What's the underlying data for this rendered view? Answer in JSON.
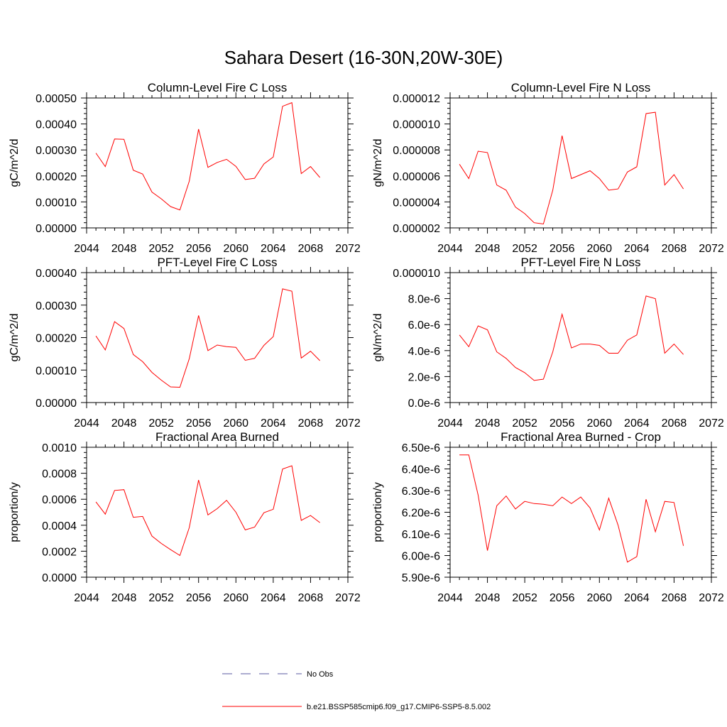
{
  "title": "Sahara Desert (16-30N,20W-30E)",
  "legend": {
    "entries": [
      {
        "label": "No Obs",
        "color": "#5a5aa0",
        "style": "dashed"
      },
      {
        "label": "b.e21.BSSP585cmip6.f09_g17.CMIP6-SSP5-8.5.002",
        "color": "#ff0000",
        "style": "solid"
      }
    ]
  },
  "chart_data": [
    {
      "type": "line",
      "title": "Column-Level Fire C Loss",
      "ylabel": "gC/m^2/d",
      "xlim": [
        2044,
        2072
      ],
      "ylim": [
        0,
        0.0005
      ],
      "xticks": [
        "2044",
        "2048",
        "2052",
        "2056",
        "2060",
        "2064",
        "2068",
        "2072"
      ],
      "yticks": [
        "0.00000",
        "0.00010",
        "0.00020",
        "0.00030",
        "0.00040",
        "0.00050"
      ],
      "x": [
        2045,
        2046,
        2047,
        2048,
        2049,
        2050,
        2051,
        2052,
        2053,
        2054,
        2055,
        2056,
        2057,
        2058,
        2059,
        2060,
        2061,
        2062,
        2063,
        2064,
        2065,
        2066,
        2067,
        2068,
        2069
      ],
      "series": [
        {
          "values": [
            0.000288,
            0.000236,
            0.000342,
            0.000341,
            0.000222,
            0.000207,
            0.000138,
            0.000112,
            8.2e-05,
            6.9e-05,
            0.00018,
            0.00038,
            0.000233,
            0.000252,
            0.000264,
            0.000237,
            0.000186,
            0.000191,
            0.000246,
            0.000273,
            0.000468,
            0.000482,
            0.000209,
            0.000236,
            0.000194
          ]
        }
      ]
    },
    {
      "type": "line",
      "title": "Column-Level Fire N Loss",
      "ylabel": "gN/m^2/d",
      "xlim": [
        2044,
        2072
      ],
      "ylim": [
        2e-06,
        1.2e-05
      ],
      "xticks": [
        "2044",
        "2048",
        "2052",
        "2056",
        "2060",
        "2064",
        "2068",
        "2072"
      ],
      "yticks": [
        "0.000002",
        "0.000004",
        "0.000006",
        "0.000008",
        "0.000010",
        "0.000012"
      ],
      "x": [
        2045,
        2046,
        2047,
        2048,
        2049,
        2050,
        2051,
        2052,
        2053,
        2054,
        2055,
        2056,
        2057,
        2058,
        2059,
        2060,
        2061,
        2062,
        2063,
        2064,
        2065,
        2066,
        2067,
        2068,
        2069
      ],
      "series": [
        {
          "values": [
            6.9e-06,
            5.8e-06,
            7.9e-06,
            7.8e-06,
            5.3e-06,
            4.9e-06,
            3.6e-06,
            3.1e-06,
            2.4e-06,
            2.3e-06,
            4.9e-06,
            9.1e-06,
            5.8e-06,
            6.1e-06,
            6.4e-06,
            5.8e-06,
            4.9e-06,
            5e-06,
            6.3e-06,
            6.7e-06,
            1.08e-05,
            1.09e-05,
            5.3e-06,
            6.1e-06,
            5e-06
          ]
        }
      ]
    },
    {
      "type": "line",
      "title": "PFT-Level Fire C Loss",
      "ylabel": "gC/m^2/d",
      "xlim": [
        2044,
        2072
      ],
      "ylim": [
        0,
        0.0004
      ],
      "xticks": [
        "2044",
        "2048",
        "2052",
        "2056",
        "2060",
        "2064",
        "2068",
        "2072"
      ],
      "yticks": [
        "0.00000",
        "0.00010",
        "0.00020",
        "0.00030",
        "0.00040"
      ],
      "x": [
        2045,
        2046,
        2047,
        2048,
        2049,
        2050,
        2051,
        2052,
        2053,
        2054,
        2055,
        2056,
        2057,
        2058,
        2059,
        2060,
        2061,
        2062,
        2063,
        2064,
        2065,
        2066,
        2067,
        2068,
        2069
      ],
      "series": [
        {
          "values": [
            0.000205,
            0.000162,
            0.000249,
            0.000228,
            0.000148,
            0.000126,
            9.3e-05,
            6.9e-05,
            4.8e-05,
            4.7e-05,
            0.000135,
            0.000268,
            0.00016,
            0.000177,
            0.000172,
            0.00017,
            0.00013,
            0.000136,
            0.000176,
            0.000203,
            0.00035,
            0.000343,
            0.000137,
            0.000158,
            0.000129
          ]
        }
      ]
    },
    {
      "type": "line",
      "title": "PFT-Level Fire N Loss",
      "ylabel": "gN/m^2/d",
      "xlim": [
        2044,
        2072
      ],
      "ylim": [
        0,
        1e-05
      ],
      "xticks": [
        "2044",
        "2048",
        "2052",
        "2056",
        "2060",
        "2064",
        "2068",
        "2072"
      ],
      "yticks": [
        "0.0e-6",
        "2.0e-6",
        "4.0e-6",
        "6.0e-6",
        "8.0e-6",
        "0.000010"
      ],
      "x": [
        2045,
        2046,
        2047,
        2048,
        2049,
        2050,
        2051,
        2052,
        2053,
        2054,
        2055,
        2056,
        2057,
        2058,
        2059,
        2060,
        2061,
        2062,
        2063,
        2064,
        2065,
        2066,
        2067,
        2068,
        2069
      ],
      "series": [
        {
          "values": [
            5.2e-06,
            4.3e-06,
            5.9e-06,
            5.6e-06,
            3.9e-06,
            3.4e-06,
            2.7e-06,
            2.3e-06,
            1.7e-06,
            1.8e-06,
            3.9e-06,
            6.8e-06,
            4.2e-06,
            4.5e-06,
            4.5e-06,
            4.4e-06,
            3.8e-06,
            3.8e-06,
            4.8e-06,
            5.2e-06,
            8.2e-06,
            8e-06,
            3.8e-06,
            4.5e-06,
            3.7e-06
          ]
        }
      ]
    },
    {
      "type": "line",
      "title": "Fractional Area Burned",
      "ylabel": "proportion/y",
      "xlim": [
        2044,
        2072
      ],
      "ylim": [
        0,
        0.001
      ],
      "xticks": [
        "2044",
        "2048",
        "2052",
        "2056",
        "2060",
        "2064",
        "2068",
        "2072"
      ],
      "yticks": [
        "0.0000",
        "0.0002",
        "0.0004",
        "0.0006",
        "0.0008",
        "0.0010"
      ],
      "x": [
        2045,
        2046,
        2047,
        2048,
        2049,
        2050,
        2051,
        2052,
        2053,
        2054,
        2055,
        2056,
        2057,
        2058,
        2059,
        2060,
        2061,
        2062,
        2063,
        2064,
        2065,
        2066,
        2067,
        2068,
        2069
      ],
      "series": [
        {
          "values": [
            0.00058,
            0.000485,
            0.000668,
            0.000674,
            0.000461,
            0.000468,
            0.000317,
            0.00026,
            0.000212,
            0.000167,
            0.000382,
            0.000748,
            0.000479,
            0.000528,
            0.000592,
            0.0005,
            0.000364,
            0.000385,
            0.000496,
            0.000523,
            0.000833,
            0.000858,
            0.000437,
            0.000475,
            0.00042
          ]
        }
      ]
    },
    {
      "type": "line",
      "title": "Fractional Area Burned - Crop",
      "ylabel": "proportion/y",
      "xlim": [
        2044,
        2072
      ],
      "ylim": [
        5.9e-06,
        6.5e-06
      ],
      "xticks": [
        "2044",
        "2048",
        "2052",
        "2056",
        "2060",
        "2064",
        "2068",
        "2072"
      ],
      "yticks": [
        "5.90e-6",
        "6.00e-6",
        "6.10e-6",
        "6.20e-6",
        "6.30e-6",
        "6.40e-6",
        "6.50e-6"
      ],
      "x": [
        2045,
        2046,
        2047,
        2048,
        2049,
        2050,
        2051,
        2052,
        2053,
        2054,
        2055,
        2056,
        2057,
        2058,
        2059,
        2060,
        2061,
        2062,
        2063,
        2064,
        2065,
        2066,
        2067,
        2068,
        2069
      ],
      "series": [
        {
          "values": [
            6.465e-06,
            6.465e-06,
            6.28e-06,
            6.023e-06,
            6.23e-06,
            6.275e-06,
            6.215e-06,
            6.25e-06,
            6.24e-06,
            6.237e-06,
            6.23e-06,
            6.27e-06,
            6.24e-06,
            6.27e-06,
            6.22e-06,
            6.118e-06,
            6.265e-06,
            6.14e-06,
            5.97e-06,
            5.995e-06,
            6.26e-06,
            6.11e-06,
            6.25e-06,
            6.245e-06,
            6.045e-06
          ]
        }
      ]
    }
  ]
}
